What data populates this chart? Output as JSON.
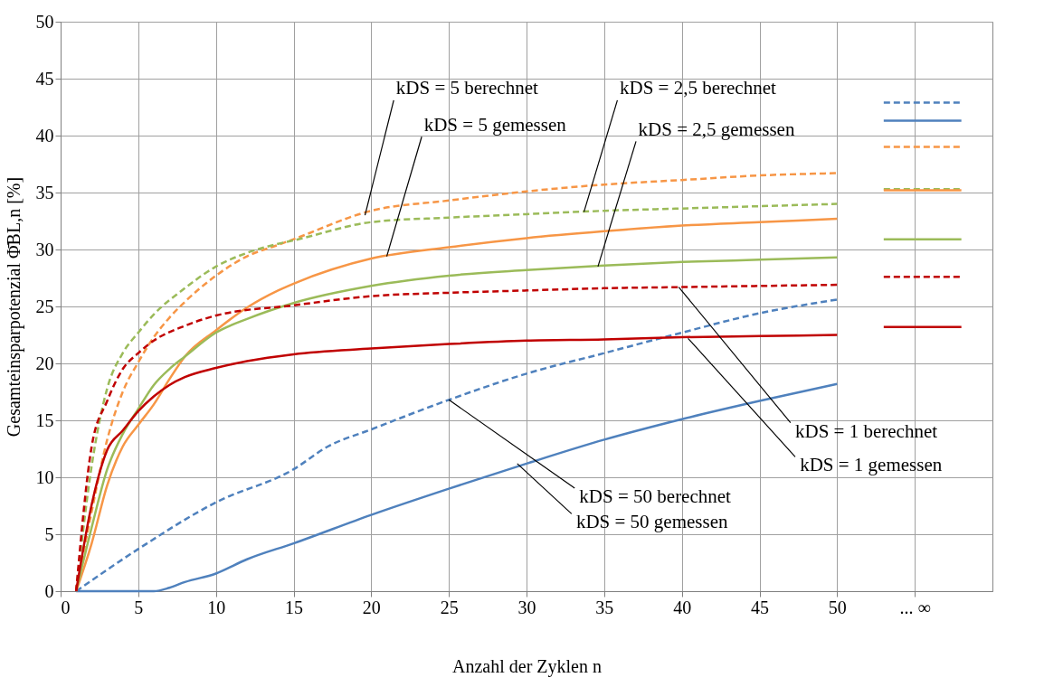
{
  "chart_data": {
    "type": "line",
    "xlabel": "Anzahl der Zyklen n",
    "ylabel": "Gesamteinsparpotenzial Φ̄BL,n   [%]",
    "xlim": [
      0,
      60
    ],
    "ylim": [
      0,
      50
    ],
    "xticks": [
      0,
      5,
      10,
      15,
      20,
      25,
      30,
      35,
      40,
      45,
      50,
      {
        "value": 55,
        "label": "... ∞"
      }
    ],
    "yticks": [
      0,
      5,
      10,
      15,
      20,
      25,
      30,
      35,
      40,
      45,
      50
    ],
    "grid": true,
    "series": [
      {
        "color": "#4f81bd",
        "line_style": "dashed",
        "x": [
          1,
          5,
          10,
          15,
          17.2,
          20,
          25,
          30,
          35,
          40,
          45,
          50
        ],
        "values": [
          0,
          3.7,
          7.8,
          10.7,
          12.7,
          14.2,
          16.8,
          19.1,
          20.9,
          22.7,
          24.4,
          25.6
        ]
      },
      {
        "color": "#4f81bd",
        "line_style": "solid",
        "x": [
          1,
          5,
          6,
          7,
          8,
          10,
          12,
          15,
          20,
          25,
          30,
          35,
          40,
          45,
          50
        ],
        "values": [
          0,
          0,
          0,
          0.3,
          0.8,
          1.55,
          2.8,
          4.2,
          6.7,
          9.0,
          11.2,
          13.3,
          15.1,
          16.7,
          18.2
        ]
      },
      {
        "color": "#f79646",
        "line_style": "dashed",
        "x": [
          1,
          2,
          3,
          4,
          5,
          6,
          7,
          8,
          10,
          12,
          14,
          15,
          20,
          25,
          30,
          35,
          40,
          45,
          50
        ],
        "values": [
          0,
          7,
          13.3,
          17.5,
          20.1,
          22.3,
          24.0,
          25.4,
          27.7,
          29.4,
          30.4,
          30.9,
          33.4,
          34.3,
          35.1,
          35.7,
          36.1,
          36.5,
          36.7
        ]
      },
      {
        "color": "#f79646",
        "line_style": "solid",
        "x": [
          1,
          2,
          3,
          4,
          5,
          6,
          7,
          8,
          10,
          12,
          14,
          15,
          20,
          25,
          30,
          35,
          40,
          45,
          50
        ],
        "values": [
          0,
          4.2,
          9.3,
          12.7,
          14.6,
          16.4,
          18.6,
          20.6,
          22.9,
          24.9,
          26.4,
          27.0,
          29.2,
          30.2,
          31.0,
          31.6,
          32.1,
          32.4,
          32.7
        ]
      },
      {
        "color": "#9bbb59",
        "line_style": "dashed",
        "x": [
          1,
          2,
          3,
          4,
          5,
          6,
          8,
          10,
          12,
          14,
          15,
          20,
          25,
          30,
          35,
          40,
          45,
          50
        ],
        "values": [
          0,
          11,
          17.8,
          20.9,
          22.7,
          24.3,
          26.6,
          28.5,
          29.7,
          30.5,
          30.8,
          32.4,
          32.8,
          33.1,
          33.4,
          33.6,
          33.8,
          34.0
        ]
      },
      {
        "color": "#9bbb59",
        "line_style": "solid",
        "x": [
          1,
          2,
          3,
          4,
          5,
          6,
          7,
          8,
          10,
          12,
          15,
          20,
          25,
          30,
          35,
          40,
          45,
          50
        ],
        "values": [
          0,
          5.6,
          10.7,
          13.8,
          16.0,
          18.1,
          19.5,
          20.6,
          22.7,
          23.9,
          25.3,
          26.8,
          27.7,
          28.2,
          28.6,
          28.9,
          29.1,
          29.3
        ]
      },
      {
        "color": "#c00000",
        "line_style": "dashed",
        "x": [
          1,
          2,
          3,
          4,
          5,
          6,
          8,
          10,
          15,
          20,
          25,
          30,
          35,
          40,
          45,
          50
        ],
        "values": [
          0,
          12.7,
          16.7,
          19.5,
          20.9,
          22.0,
          23.3,
          24.2,
          25.1,
          25.9,
          26.2,
          26.4,
          26.6,
          26.7,
          26.8,
          26.9
        ]
      },
      {
        "color": "#c00000",
        "line_style": "solid",
        "x": [
          1,
          2,
          3,
          4,
          5,
          6,
          7,
          8,
          10,
          12,
          15,
          20,
          25,
          30,
          35,
          40,
          45,
          50
        ],
        "values": [
          0,
          7.6,
          12.4,
          14.1,
          15.8,
          17.1,
          18.1,
          18.8,
          19.6,
          20.2,
          20.8,
          21.3,
          21.7,
          22.0,
          22.1,
          22.3,
          22.4,
          22.5
        ]
      },
      {
        "color": "#4f81bd",
        "line_style": "dashed",
        "x": [
          53,
          58
        ],
        "values": [
          42.9,
          42.9
        ]
      },
      {
        "color": "#4f81bd",
        "line_style": "solid",
        "x": [
          53,
          58
        ],
        "values": [
          41.3,
          41.3
        ]
      },
      {
        "color": "#f79646",
        "line_style": "dashed",
        "x": [
          53,
          58
        ],
        "values": [
          39.0,
          39.0
        ]
      },
      {
        "color": "#9bbb59",
        "line_style": "dashed",
        "x": [
          53,
          58
        ],
        "values": [
          35.3,
          35.3
        ]
      },
      {
        "color": "#f79646",
        "line_style": "solid",
        "x": [
          53,
          58
        ],
        "values": [
          35.2,
          35.2
        ]
      },
      {
        "color": "#9bbb59",
        "line_style": "solid",
        "x": [
          53,
          58
        ],
        "values": [
          30.9,
          30.9
        ]
      },
      {
        "color": "#c00000",
        "line_style": "dashed",
        "x": [
          53,
          58
        ],
        "values": [
          27.6,
          27.6
        ]
      },
      {
        "color": "#c00000",
        "line_style": "solid",
        "x": [
          53,
          58
        ],
        "values": [
          23.2,
          23.2
        ]
      }
    ],
    "annotations": [
      {
        "text": "kDS = 5 berechnet",
        "x": 19.6,
        "y": 33.0
      },
      {
        "text": "kDS = 5 gemessen",
        "x": 21,
        "y": 29.4
      },
      {
        "text": "kDS = 2,5 berechnet",
        "x": 33.7,
        "y": 33.3
      },
      {
        "text": "kDS = 2,5 gemessen",
        "x": 34.6,
        "y": 28.5
      },
      {
        "text": "kDS = 1 berechnet",
        "x": 39.8,
        "y": 26.7
      },
      {
        "text": "kDS = 1 gemessen",
        "x": 40.4,
        "y": 22.2
      },
      {
        "text": "kDS = 50 berechnet",
        "x": 25,
        "y": 16.8
      },
      {
        "text": "kDS = 50 gemessen",
        "x": 29.4,
        "y": 11.2
      }
    ]
  }
}
